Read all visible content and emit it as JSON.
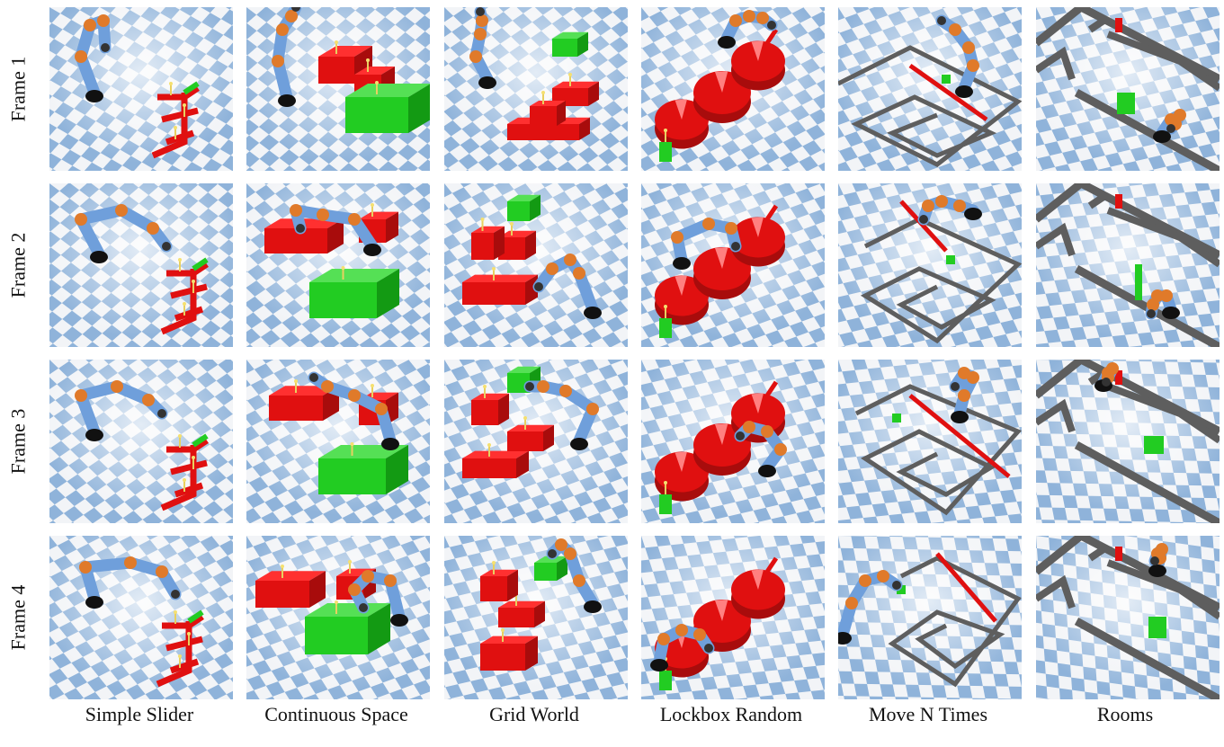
{
  "rows": [
    {
      "label": "Frame 1"
    },
    {
      "label": "Frame 2"
    },
    {
      "label": "Frame 3"
    },
    {
      "label": "Frame 4"
    }
  ],
  "columns": [
    {
      "label": "Simple Slider",
      "scene": "slider"
    },
    {
      "label": "Continuous Space",
      "scene": "continuous"
    },
    {
      "label": "Grid World",
      "scene": "grid"
    },
    {
      "label": "Lockbox Random",
      "scene": "lockbox"
    },
    {
      "label": "Move N Times",
      "scene": "moven"
    },
    {
      "label": "Rooms",
      "scene": "rooms"
    }
  ],
  "colors": {
    "floor_blue": "#8fb3da",
    "floor_light": "#f2f4f7",
    "lock_red": "#e01010",
    "target_green": "#22cc22",
    "robot_blue": "#6f9fdb",
    "robot_orange": "#e07a2a",
    "wall_gray": "#5e5e5e"
  }
}
